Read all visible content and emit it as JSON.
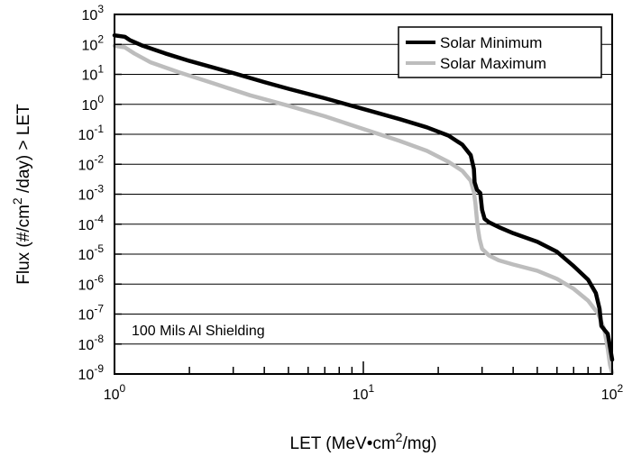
{
  "chart_data": {
    "type": "line",
    "title": "",
    "xlabel": {
      "prefix": "LET (MeV•cm",
      "sup": "2",
      "suffix": "/mg)"
    },
    "ylabel": {
      "prefix": "Flux (#/cm",
      "sup": "2",
      "suffix": " /day) > LET"
    },
    "xscale": "log",
    "yscale": "log",
    "xlim": [
      1,
      100
    ],
    "ylim": [
      1e-09,
      1000.0
    ],
    "x_ticks": [
      {
        "base": "10",
        "exp": "0",
        "value": 1
      },
      {
        "base": "10",
        "exp": "1",
        "value": 10
      },
      {
        "base": "10",
        "exp": "2",
        "value": 100
      }
    ],
    "y_ticks": [
      {
        "base": "10",
        "exp": "3",
        "value": 1000.0
      },
      {
        "base": "10",
        "exp": "2",
        "value": 100.0
      },
      {
        "base": "10",
        "exp": "1",
        "value": 10.0
      },
      {
        "base": "10",
        "exp": "0",
        "value": 1.0
      },
      {
        "base": "10",
        "exp": "-1",
        "value": 0.1
      },
      {
        "base": "10",
        "exp": "-2",
        "value": 0.01
      },
      {
        "base": "10",
        "exp": "-3",
        "value": 0.001
      },
      {
        "base": "10",
        "exp": "-4",
        "value": 0.0001
      },
      {
        "base": "10",
        "exp": "-5",
        "value": 1e-05
      },
      {
        "base": "10",
        "exp": "-6",
        "value": 1e-06
      },
      {
        "base": "10",
        "exp": "-7",
        "value": 1e-07
      },
      {
        "base": "10",
        "exp": "-8",
        "value": 1e-08
      },
      {
        "base": "10",
        "exp": "-9",
        "value": 1e-09
      }
    ],
    "grid": {
      "horizontal": true,
      "vertical": false
    },
    "legend_position": "top-right",
    "annotation": "100 Mils Al Shielding",
    "series": [
      {
        "name": "Solar Minimum",
        "color": "#000000",
        "points": [
          [
            1.0,
            200
          ],
          [
            1.1,
            180
          ],
          [
            1.15,
            140
          ],
          [
            1.3,
            90
          ],
          [
            1.6,
            50
          ],
          [
            2.0,
            28
          ],
          [
            3.0,
            11
          ],
          [
            4.0,
            5.5
          ],
          [
            5.0,
            3.3
          ],
          [
            7.0,
            1.6
          ],
          [
            10,
            0.7
          ],
          [
            14,
            0.32
          ],
          [
            18,
            0.17
          ],
          [
            22,
            0.09
          ],
          [
            25,
            0.045
          ],
          [
            27,
            0.02
          ],
          [
            27.8,
            0.007
          ],
          [
            28.0,
            0.0025
          ],
          [
            28.6,
            0.0014
          ],
          [
            29.5,
            0.0011
          ],
          [
            30.0,
            0.0003
          ],
          [
            30.7,
            0.00015
          ],
          [
            32,
            0.000115
          ],
          [
            35,
            8e-05
          ],
          [
            40,
            5e-05
          ],
          [
            50,
            2.6e-05
          ],
          [
            60,
            1.2e-05
          ],
          [
            70,
            4e-06
          ],
          [
            80,
            1.4e-06
          ],
          [
            86,
            5e-07
          ],
          [
            89,
            1.5e-07
          ],
          [
            90.5,
            4e-08
          ],
          [
            93,
            3e-08
          ],
          [
            96,
            2.2e-08
          ],
          [
            100,
            3e-09
          ]
        ]
      },
      {
        "name": "Solar Maximum",
        "color": "#bdbdbd",
        "points": [
          [
            1.0,
            90
          ],
          [
            1.1,
            80
          ],
          [
            1.2,
            50
          ],
          [
            1.4,
            25
          ],
          [
            1.8,
            12
          ],
          [
            2.5,
            5
          ],
          [
            3.5,
            2
          ],
          [
            5.0,
            0.9
          ],
          [
            7.0,
            0.4
          ],
          [
            10,
            0.15
          ],
          [
            14,
            0.06
          ],
          [
            18,
            0.028
          ],
          [
            22,
            0.012
          ],
          [
            25,
            0.006
          ],
          [
            27,
            0.0028
          ],
          [
            27.8,
            0.0012
          ],
          [
            28.2,
            0.0005
          ],
          [
            28.5,
            0.0002
          ],
          [
            28.8,
            8e-05
          ],
          [
            29.3,
            3.2e-05
          ],
          [
            30,
            1.5e-05
          ],
          [
            32,
            9e-06
          ],
          [
            35,
            6.2e-06
          ],
          [
            40,
            4.5e-06
          ],
          [
            50,
            2.8e-06
          ],
          [
            60,
            1.5e-06
          ],
          [
            70,
            7e-07
          ],
          [
            80,
            2.8e-07
          ],
          [
            88,
            1e-07
          ],
          [
            93,
            3e-08
          ],
          [
            96,
            7e-09
          ],
          [
            98,
            2e-09
          ],
          [
            100,
            1.1e-09
          ]
        ]
      }
    ]
  }
}
